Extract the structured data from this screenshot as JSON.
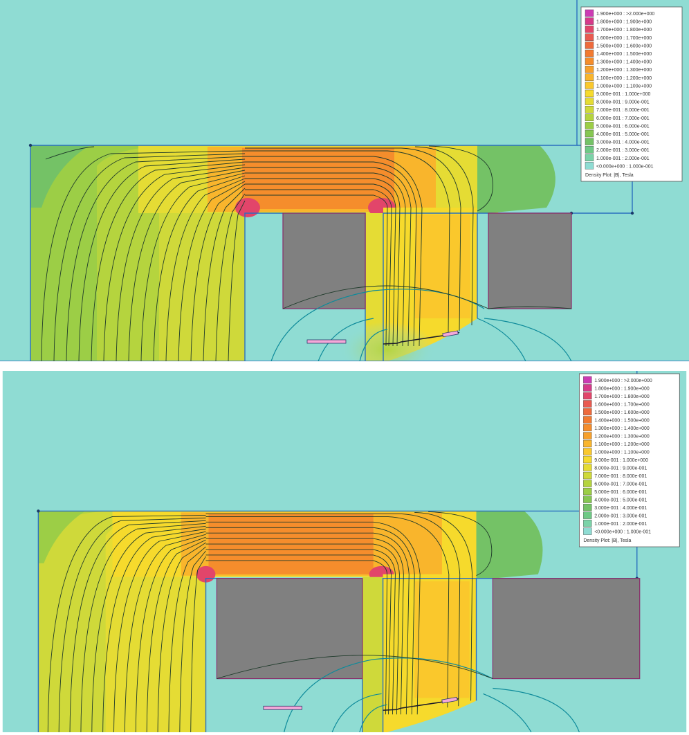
{
  "palette": {
    "background": "#8fdcd3",
    "core_outline": "#2a6fbf",
    "coil_fill": "#808080",
    "coil_outline": "#8a2a6a",
    "flux_line": "#1e3a2a",
    "boundary_line": "#0d8a9a",
    "plate_fill": "#f4a8d8"
  },
  "legend": {
    "title": "Density Plot: |B|, Tesla",
    "entries": [
      {
        "label": "1.900e+000 : >2.000e+000",
        "color": "#cc3bb4"
      },
      {
        "label": "1.800e+000 : 1.900e+000",
        "color": "#d63a8a"
      },
      {
        "label": "1.700e+000 : 1.800e+000",
        "color": "#e2456a"
      },
      {
        "label": "1.600e+000 : 1.700e+000",
        "color": "#e95a50"
      },
      {
        "label": "1.500e+000 : 1.600e+000",
        "color": "#ee6a3c"
      },
      {
        "label": "1.400e+000 : 1.500e+000",
        "color": "#f27a30"
      },
      {
        "label": "1.300e+000 : 1.400e+000",
        "color": "#f58d2c"
      },
      {
        "label": "1.200e+000 : 1.300e+000",
        "color": "#f7a02c"
      },
      {
        "label": "1.100e+000 : 1.200e+000",
        "color": "#f9b52c"
      },
      {
        "label": "1.000e+000 : 1.100e+000",
        "color": "#fac82c"
      },
      {
        "label": "9.000e-001 : 1.000e+000",
        "color": "#f6da2c"
      },
      {
        "label": "8.000e-001 : 9.000e-001",
        "color": "#e5dc34"
      },
      {
        "label": "7.000e-001 : 8.000e-001",
        "color": "#cfd93a"
      },
      {
        "label": "6.000e-001 : 7.000e-001",
        "color": "#b5d43e"
      },
      {
        "label": "5.000e-001 : 6.000e-001",
        "color": "#9cce46"
      },
      {
        "label": "4.000e-001 : 5.000e-001",
        "color": "#86c752"
      },
      {
        "label": "3.000e-001 : 4.000e-001",
        "color": "#74c266"
      },
      {
        "label": "2.000e-001 : 3.000e-001",
        "color": "#6fc986"
      },
      {
        "label": "1.000e-001 : 2.000e-001",
        "color": "#7bd3a8"
      },
      {
        "label": "<0.000e+000 : 1.000e-001",
        "color": "#8fdcd3"
      }
    ]
  }
}
